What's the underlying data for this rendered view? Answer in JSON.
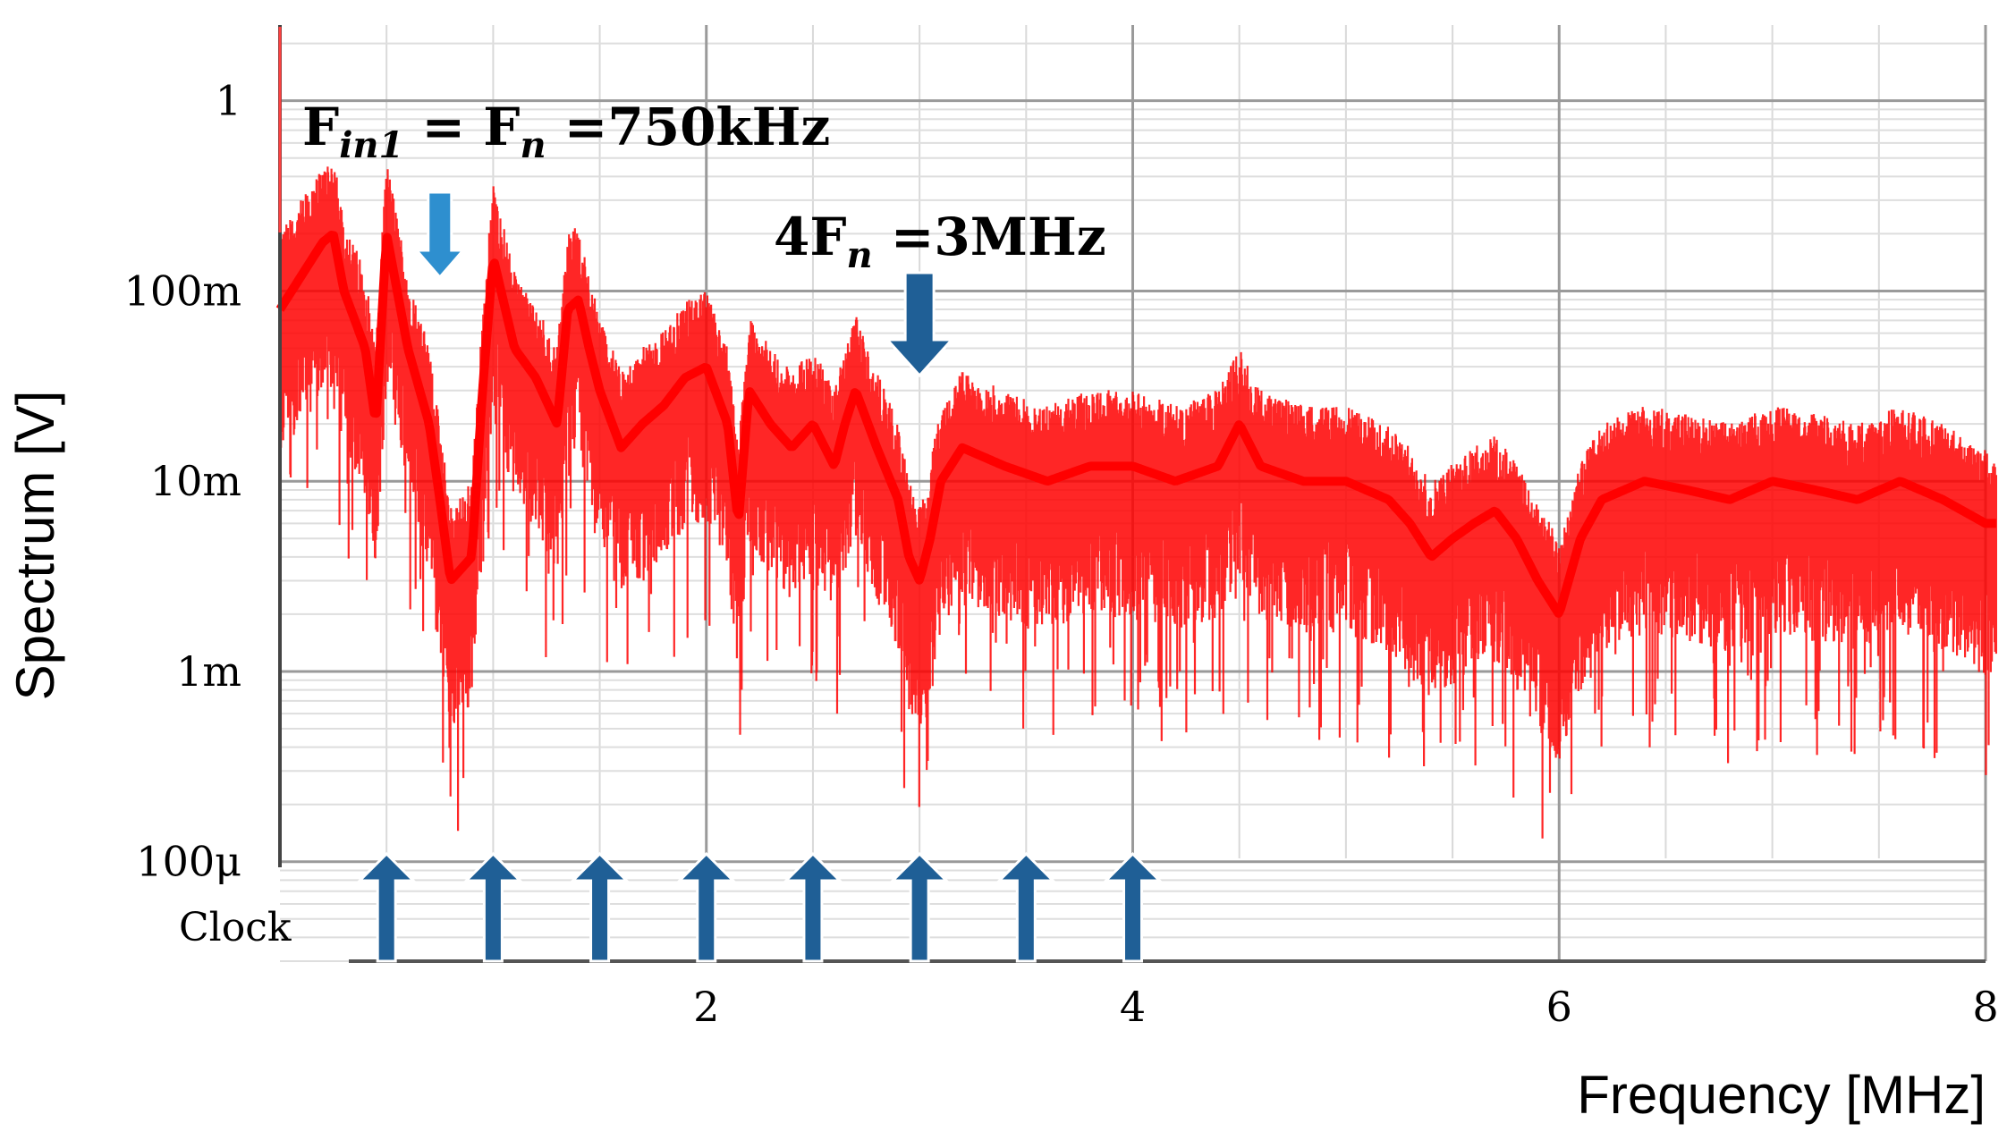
{
  "chart_data": {
    "type": "line",
    "xlabel": "Frequency [MHz]",
    "ylabel": "Spectrum [V]",
    "xlim": [
      0,
      8
    ],
    "ylim": [
      3e-05,
      2.5
    ],
    "y_scale": "log",
    "grid": true,
    "x_ticks": [
      2,
      4,
      6,
      8
    ],
    "y_ticks": [
      {
        "value": 1,
        "label": "1"
      },
      {
        "value": 0.1,
        "label": "100m"
      },
      {
        "value": 0.01,
        "label": "10m"
      },
      {
        "value": 0.001,
        "label": "1m"
      },
      {
        "value": 0.0001,
        "label": "100μ"
      }
    ],
    "series": [
      {
        "color": "#ff0000",
        "x": [
          0.0,
          0.1,
          0.2,
          0.25,
          0.3,
          0.4,
          0.45,
          0.5,
          0.6,
          0.7,
          0.75,
          0.8,
          0.9,
          0.95,
          1.0,
          1.1,
          1.2,
          1.3,
          1.35,
          1.4,
          1.45,
          1.5,
          1.6,
          1.7,
          1.8,
          1.9,
          2.0,
          2.1,
          2.15,
          2.2,
          2.3,
          2.4,
          2.5,
          2.6,
          2.65,
          2.7,
          2.8,
          2.9,
          2.95,
          3.0,
          3.05,
          3.1,
          3.2,
          3.4,
          3.6,
          3.8,
          4.0,
          4.2,
          4.4,
          4.5,
          4.6,
          4.8,
          5.0,
          5.2,
          5.3,
          5.4,
          5.5,
          5.6,
          5.7,
          5.8,
          5.9,
          6.0,
          6.1,
          6.2,
          6.4,
          6.6,
          6.8,
          7.0,
          7.2,
          7.4,
          7.6,
          7.8,
          8.0,
          8.05
        ],
        "y": [
          0.08,
          0.12,
          0.18,
          0.2,
          0.1,
          0.05,
          0.02,
          0.2,
          0.05,
          0.02,
          0.008,
          0.003,
          0.004,
          0.03,
          0.15,
          0.05,
          0.035,
          0.02,
          0.08,
          0.09,
          0.05,
          0.03,
          0.015,
          0.02,
          0.025,
          0.035,
          0.04,
          0.02,
          0.006,
          0.03,
          0.02,
          0.015,
          0.02,
          0.012,
          0.02,
          0.03,
          0.015,
          0.008,
          0.004,
          0.003,
          0.005,
          0.01,
          0.015,
          0.012,
          0.01,
          0.012,
          0.012,
          0.01,
          0.012,
          0.02,
          0.012,
          0.01,
          0.01,
          0.008,
          0.006,
          0.004,
          0.005,
          0.006,
          0.007,
          0.005,
          0.003,
          0.002,
          0.005,
          0.008,
          0.01,
          0.009,
          0.008,
          0.01,
          0.009,
          0.008,
          0.01,
          0.008,
          0.006,
          0.006
        ]
      }
    ],
    "annotations": [
      {
        "text": "F",
        "sub": "in1",
        "text2": " = F",
        "sub2": "n",
        "text3": " =750kHz",
        "x": 0.75,
        "arrow": "down"
      },
      {
        "text": "4F",
        "sub": "n",
        "text2": " =3MHz",
        "x": 3.0,
        "arrow": "down"
      }
    ],
    "clock": {
      "label": "Clock",
      "x": [
        0.5,
        1.0,
        1.5,
        2.0,
        2.5,
        3.0,
        3.5,
        4.0
      ],
      "color": "#1f5f96"
    }
  }
}
